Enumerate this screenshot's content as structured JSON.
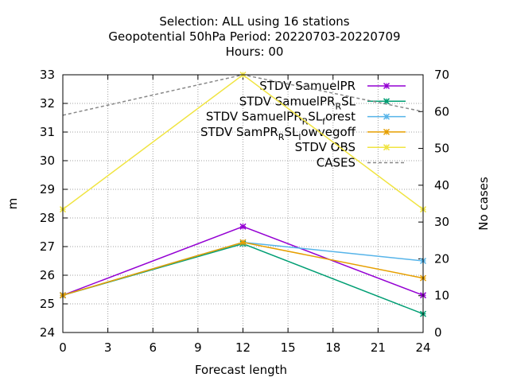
{
  "chart_data": {
    "type": "line",
    "title_lines": [
      "Selection: ALL using    16 stations",
      "Geopotential 50hPa   Period: 20220703-20220709",
      "Hours:  00"
    ],
    "xlabel": "Forecast length",
    "ylabel": "m",
    "y2label": "No cases",
    "x": [
      0,
      12,
      24
    ],
    "xlim": [
      0,
      24
    ],
    "xticks": [
      0,
      3,
      6,
      9,
      12,
      15,
      18,
      21,
      24
    ],
    "ylim": [
      24,
      33
    ],
    "yticks": [
      24,
      25,
      26,
      27,
      28,
      29,
      30,
      31,
      32,
      33
    ],
    "y2lim": [
      0,
      70
    ],
    "y2ticks": [
      0,
      10,
      20,
      30,
      40,
      50,
      60,
      70
    ],
    "grid": true,
    "legend_position": "top-right",
    "series": [
      {
        "name": "STDV SamuelPR",
        "label_parts": [
          [
            "STDV SamuelPR",
            "n"
          ]
        ],
        "color": "#9400d3",
        "values": [
          25.3,
          27.7,
          25.3
        ],
        "axis": "y1",
        "style": "solid",
        "marker": true
      },
      {
        "name": "STDV SamuelPR_R SL",
        "label_parts": [
          [
            "STDV SamuelPR",
            "n"
          ],
          [
            "R",
            "sub"
          ],
          [
            "SL",
            "n"
          ]
        ],
        "color": "#009e73",
        "values": [
          25.3,
          27.1,
          24.65
        ],
        "axis": "y1",
        "style": "solid",
        "marker": true
      },
      {
        "name": "STDV SamuelPR_R SL_forest",
        "label_parts": [
          [
            "STDV SamuelPR",
            "n"
          ],
          [
            "R",
            "sub"
          ],
          [
            "SL",
            "n"
          ],
          [
            "f",
            "sub"
          ],
          [
            "orest",
            "n"
          ]
        ],
        "color": "#56b4e9",
        "values": [
          25.3,
          27.15,
          26.5
        ],
        "axis": "y1",
        "style": "solid",
        "marker": true
      },
      {
        "name": "STDV SamPR_R SL_lowvegoff",
        "label_parts": [
          [
            "STDV SamPR",
            "n"
          ],
          [
            "R",
            "sub"
          ],
          [
            "SL",
            "n"
          ],
          [
            "l",
            "sub"
          ],
          [
            "owvegoff",
            "n"
          ]
        ],
        "color": "#e69f00",
        "values": [
          25.3,
          27.15,
          25.9
        ],
        "axis": "y1",
        "style": "solid",
        "marker": true
      },
      {
        "name": "STDV OBS",
        "label_parts": [
          [
            "STDV OBS",
            "n"
          ]
        ],
        "color": "#f0e442",
        "values": [
          28.3,
          33.0,
          28.3
        ],
        "axis": "y1",
        "style": "solid",
        "marker": true
      },
      {
        "name": "CASES",
        "label_parts": [
          [
            "CASES",
            "n"
          ]
        ],
        "color": "#888888",
        "values": [
          59,
          70,
          60
        ],
        "axis": "y2",
        "style": "dashed",
        "marker": false
      }
    ]
  }
}
